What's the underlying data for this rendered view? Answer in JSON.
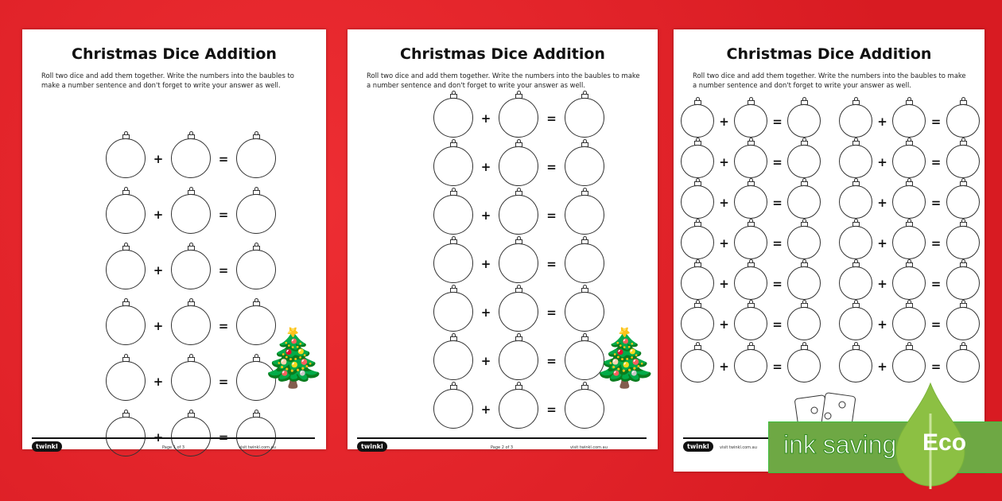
{
  "worksheet": {
    "title": "Christmas Dice Addition",
    "instructions": "Roll two dice and add them together. Write the numbers into the baubles to make a number sentence and don't forget to write your answer as well.",
    "plus": "+",
    "equals": "=",
    "brand": "twinkl",
    "website": "visit twinkl.com.au"
  },
  "pages": [
    {
      "page_label": "Page 1 of 3",
      "rows": 6,
      "columns": 1,
      "decoration": "christmas-tree"
    },
    {
      "page_label": "Page 2 of 3",
      "rows": 7,
      "columns": 1,
      "decoration": "christmas-tree"
    },
    {
      "page_label": "",
      "rows": 7,
      "columns": 2,
      "decoration": "dice"
    }
  ],
  "badge": {
    "label": "ink saving",
    "eco": "Eco",
    "color": "#6ea844"
  },
  "colors": {
    "background": "#e8232a"
  }
}
